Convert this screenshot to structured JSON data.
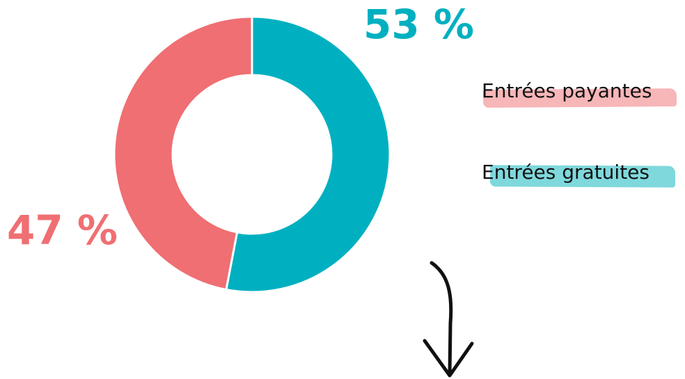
{
  "chart_data": {
    "type": "pie",
    "donut": true,
    "title": "",
    "labels": [
      "Entrées payantes",
      "Entrées gratuites"
    ],
    "values": [
      47,
      53
    ],
    "value_labels": [
      "47 %",
      "53 %"
    ],
    "colors": [
      "#EF6F73",
      "#00B0C0"
    ],
    "legend_swatch_colors": [
      "#F7B6B8",
      "#7FD8DC"
    ],
    "legend_position": "right"
  },
  "decorations": {
    "arrow_icon": "down-arrow-icon"
  }
}
